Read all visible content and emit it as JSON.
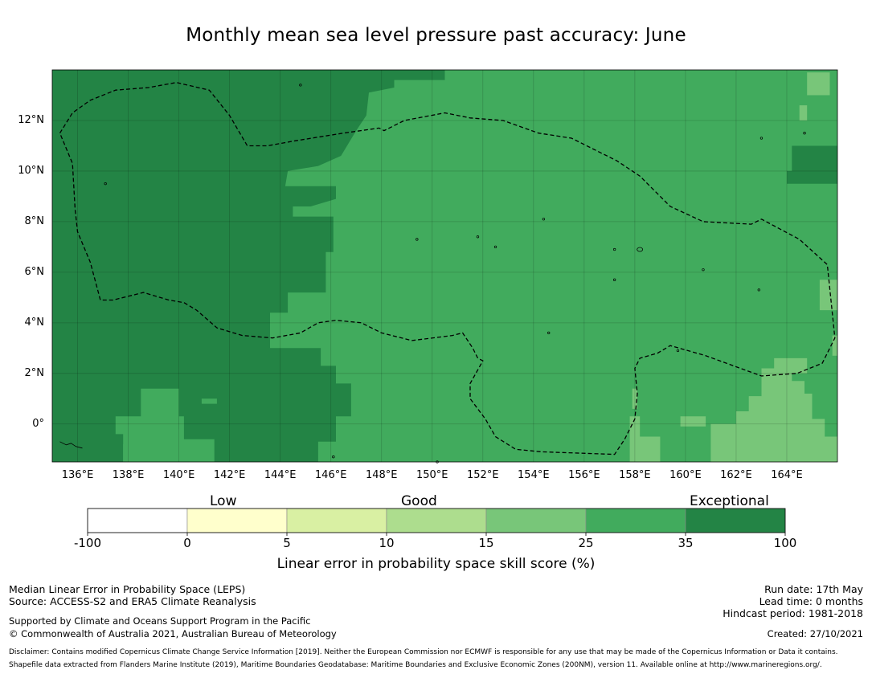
{
  "title": "Monthly mean sea level pressure past accuracy: June",
  "map": {
    "lat_labels": [
      "12°N",
      "10°N",
      "8°N",
      "6°N",
      "4°N",
      "2°N",
      "0°"
    ],
    "lon_labels": [
      "136°E",
      "138°E",
      "140°E",
      "142°E",
      "144°E",
      "146°E",
      "148°E",
      "150°E",
      "152°E",
      "154°E",
      "156°E",
      "158°E",
      "160°E",
      "162°E",
      "164°E"
    ],
    "lon_range": [
      135,
      166
    ],
    "lat_range": [
      -1.5,
      14
    ],
    "colors": {
      "exceptional": "#238445",
      "high": "#41ab5d",
      "medium": "#78c679",
      "good": "#addd8e",
      "fair": "#d9f0a3",
      "low": "#ffffcc",
      "none": "#ffffff"
    }
  },
  "colorbar": {
    "categories": [
      "Low",
      "Good",
      "Exceptional"
    ],
    "ticks": [
      "-100",
      "0",
      "5",
      "10",
      "15",
      "25",
      "35",
      "100"
    ],
    "colors": [
      "#ffffff",
      "#ffffcc",
      "#d9f0a3",
      "#addd8e",
      "#78c679",
      "#41ab5d",
      "#238445"
    ],
    "label": "Linear error in probability space skill score (%)"
  },
  "footer": {
    "left_line1": "Median Linear Error in Probability Space (LEPS)",
    "left_line2": "Source: ACCESS-S2 and ERA5 Climate Reanalysis",
    "support_line1": "Supported by Climate and Oceans Support Program in the Pacific",
    "support_line2": "© Commonwealth of Australia 2021, Australian Bureau of Meteorology",
    "run_date": "Run date: 17th May",
    "lead_time": "Lead time: 0 months",
    "hindcast": "Hindcast period: 1981-2018",
    "created": "Created: 27/10/2021",
    "disclaimer": "Disclaimer: Contains modified Copernicus Climate Change Service Information [2019]. Neither the European Commission nor ECMWF is responsible for any use that may be made of the Copernicus Information or Data it contains.",
    "shapefile": "Shapefile data extracted from Flanders Marine Institute (2019), Maritime Boundaries Geodatabase: Maritime Boundaries and Exclusive Economic Zones (200NM), version 11. Available online at http://www.marineregions.org/."
  }
}
